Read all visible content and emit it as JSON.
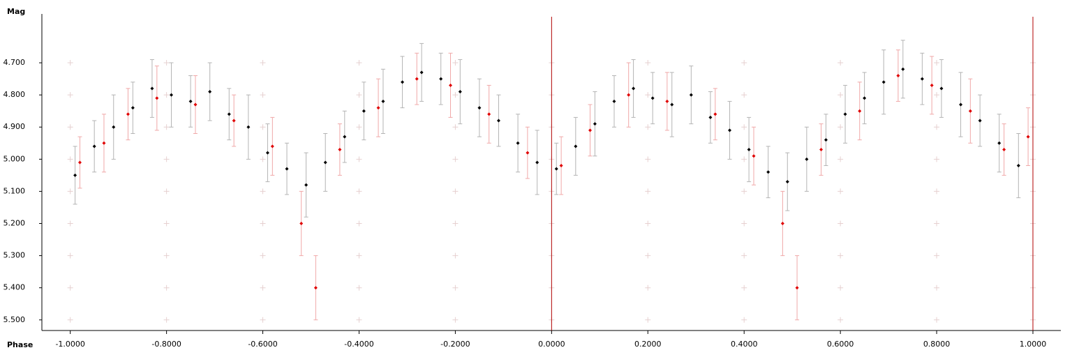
{
  "chart_data": {
    "type": "errorscatter",
    "ylabel": "Mag",
    "xlabel": "Phase",
    "xlim": [
      -1.059,
      1.058
    ],
    "ylim": [
      4.548,
      5.533
    ],
    "y_inverted": true,
    "grid": "crosses",
    "xticks": [
      {
        "value": -1,
        "label": "-1.0000"
      },
      {
        "value": -0.8,
        "label": "-0.8000"
      },
      {
        "value": -0.6,
        "label": "-0.6000"
      },
      {
        "value": -0.4,
        "label": "-0.4000"
      },
      {
        "value": -0.2,
        "label": "-0.2000"
      },
      {
        "value": 0,
        "label": "0.0000"
      },
      {
        "value": 0.2,
        "label": "0.2000"
      },
      {
        "value": 0.4,
        "label": "0.4000"
      },
      {
        "value": 0.6,
        "label": "0.6000"
      },
      {
        "value": 0.8,
        "label": "0.8000"
      },
      {
        "value": 1,
        "label": "1.0000"
      }
    ],
    "yticks": [
      {
        "value": 4.7,
        "label": "4.700"
      },
      {
        "value": 4.8,
        "label": "4.800"
      },
      {
        "value": 4.9,
        "label": "4.900"
      },
      {
        "value": 5.0,
        "label": "5.000"
      },
      {
        "value": 5.1,
        "label": "5.100"
      },
      {
        "value": 5.2,
        "label": "5.200"
      },
      {
        "value": 5.3,
        "label": "5.300"
      },
      {
        "value": 5.4,
        "label": "5.400"
      },
      {
        "value": 5.5,
        "label": "5.500"
      }
    ],
    "vlines": [
      0,
      1
    ],
    "vline_color": "#b00000",
    "series": [
      {
        "color": "#000000",
        "error_color": "#b4b4b4",
        "x": [
          -0.99,
          -0.95,
          -0.91,
          -0.87,
          -0.83,
          -0.79,
          -0.75,
          -0.71,
          -0.67,
          -0.63,
          -0.59,
          -0.55,
          -0.51,
          -0.47,
          -0.43,
          -0.39,
          -0.35,
          -0.31,
          -0.27,
          -0.23,
          -0.19,
          -0.15,
          -0.11,
          -0.07,
          -0.03,
          0.01,
          0.05,
          0.09,
          0.13,
          0.17,
          0.21,
          0.25,
          0.29,
          0.33,
          0.37,
          0.41,
          0.45,
          0.49,
          0.53,
          0.57,
          0.61,
          0.65,
          0.69,
          0.73,
          0.77,
          0.81,
          0.85,
          0.89,
          0.93,
          0.97
        ],
        "values": [
          5.05,
          4.96,
          4.9,
          4.84,
          4.78,
          4.8,
          4.82,
          4.79,
          4.86,
          4.9,
          4.98,
          5.03,
          5.08,
          5.01,
          4.93,
          4.85,
          4.82,
          4.76,
          4.73,
          4.75,
          4.79,
          4.84,
          4.88,
          4.95,
          5.01,
          5.03,
          4.96,
          4.89,
          4.82,
          4.78,
          4.81,
          4.83,
          4.8,
          4.87,
          4.91,
          4.97,
          5.04,
          5.07,
          5.0,
          4.94,
          4.86,
          4.81,
          4.76,
          4.72,
          4.75,
          4.78,
          4.83,
          4.88,
          4.95,
          5.02
        ],
        "errors": [
          0.09,
          0.08,
          0.1,
          0.08,
          0.09,
          0.1,
          0.08,
          0.09,
          0.08,
          0.1,
          0.09,
          0.08,
          0.1,
          0.09,
          0.08,
          0.09,
          0.1,
          0.08,
          0.09,
          0.08,
          0.1,
          0.09,
          0.08,
          0.09,
          0.1,
          0.08,
          0.09,
          0.1,
          0.08,
          0.09,
          0.08,
          0.1,
          0.09,
          0.08,
          0.09,
          0.1,
          0.08,
          0.09,
          0.1,
          0.08,
          0.09,
          0.08,
          0.1,
          0.09,
          0.08,
          0.09,
          0.1,
          0.08,
          0.09,
          0.1
        ]
      },
      {
        "color": "#e00000",
        "error_color": "#f0a8a8",
        "x": [
          -0.98,
          -0.93,
          -0.88,
          -0.82,
          -0.74,
          -0.66,
          -0.58,
          -0.52,
          -0.49,
          -0.44,
          -0.36,
          -0.28,
          -0.21,
          -0.13,
          -0.05,
          0.02,
          0.08,
          0.16,
          0.24,
          0.34,
          0.42,
          0.48,
          0.51,
          0.56,
          0.64,
          0.72,
          0.79,
          0.87,
          0.94,
          0.99
        ],
        "values": [
          5.01,
          4.95,
          4.86,
          4.81,
          4.83,
          4.88,
          4.96,
          5.2,
          5.4,
          4.97,
          4.84,
          4.75,
          4.77,
          4.86,
          4.98,
          5.02,
          4.91,
          4.8,
          4.82,
          4.86,
          4.99,
          5.2,
          5.4,
          4.97,
          4.85,
          4.74,
          4.77,
          4.85,
          4.97,
          4.93
        ],
        "errors": [
          0.08,
          0.09,
          0.08,
          0.1,
          0.09,
          0.08,
          0.09,
          0.1,
          0.1,
          0.08,
          0.09,
          0.08,
          0.1,
          0.09,
          0.08,
          0.09,
          0.08,
          0.1,
          0.09,
          0.08,
          0.09,
          0.1,
          0.1,
          0.08,
          0.09,
          0.08,
          0.09,
          0.1,
          0.08,
          0.09
        ]
      }
    ]
  }
}
